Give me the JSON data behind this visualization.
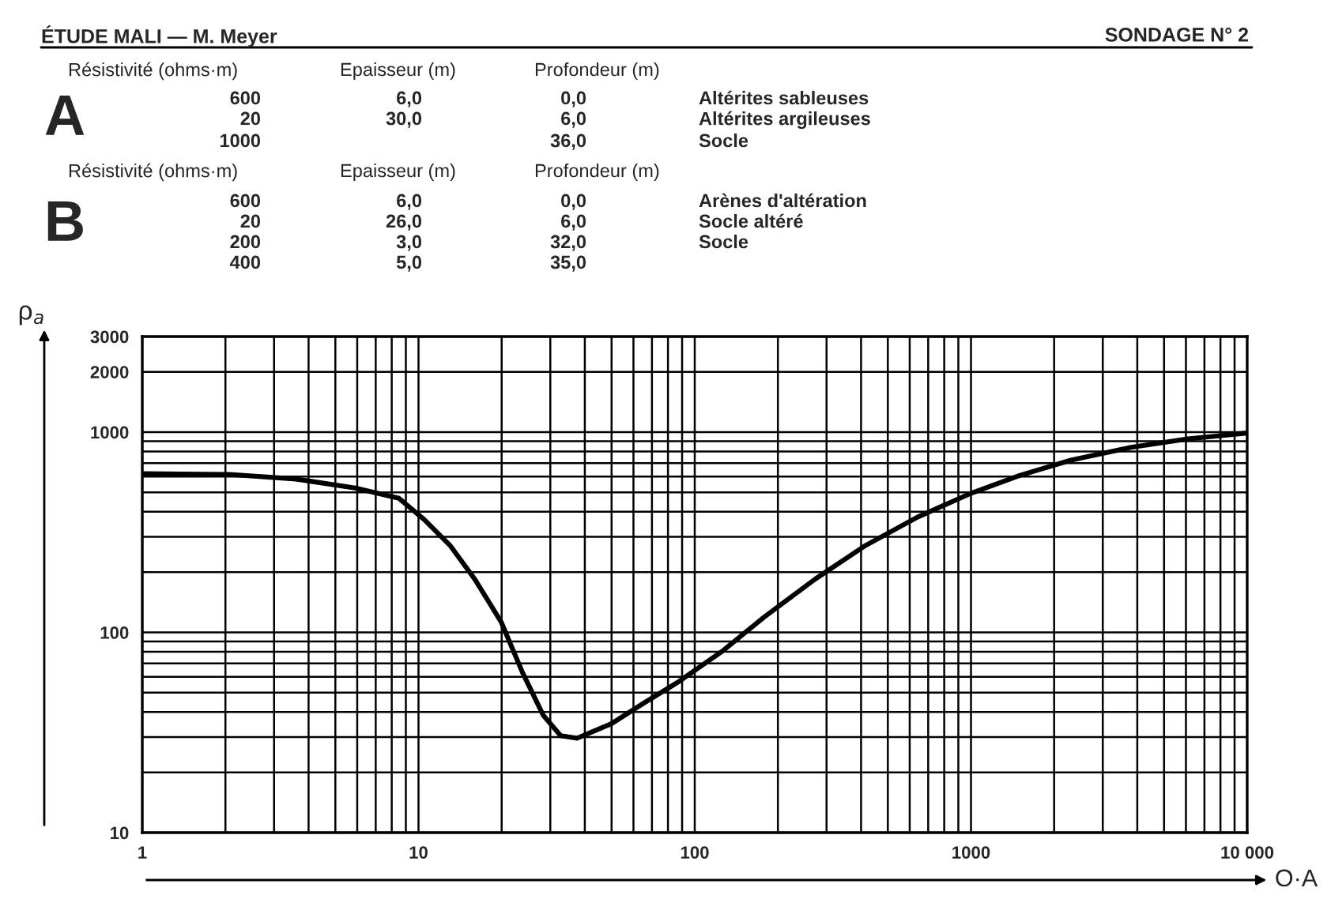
{
  "chart_data": {
    "type": "line",
    "title": "ÉTUDE MALI — M. Meyer",
    "subtitle": "SONDAGE N° 2",
    "annotations": [
      "Résistivité (ohms·m)\tEpaisseur (m)\tProfondeur (m)",
      "A",
      "600\t6,0\t0,0\tAltérites sableuses",
      "20\t30,0\t6,0\tAltérites argileuses",
      "1000\t\t36,0\tSocle",
      "Résistivité (ohms·m)\tEpaisseur (m)\tProfondeur (m)",
      "B",
      "600\t6,0\t0,0\tArènes d'altération",
      "20\t26,0\t6,0\tSocle altéré",
      "200\t3,0\t32,0\tSocle",
      "400\t5,0\t35,0"
    ],
    "ylabel": "ρ$_{a}$",
    "xlabel": "O·A",
    "log": "xy",
    "grid": true,
    "line_style": "solid",
    "xlim": [
      1,
      10000
    ],
    "xticks": [
      1,
      10,
      100,
      1000,
      {
        "value": 10000,
        "label": "10 000"
      }
    ],
    "ylim": [
      10,
      3000
    ],
    "yticks": [
      10,
      100,
      1000,
      2000,
      3000
    ],
    "series": [
      {
        "color": "#000000",
        "x": [
          1,
          2.06,
          3.6,
          5.9,
          8.5,
          10.5,
          13,
          16,
          19.9,
          23.8,
          28.3,
          32.7,
          37.5,
          49.9,
          66,
          88,
          125,
          178,
          272,
          416,
          640,
          980,
          1500,
          2300,
          3800,
          6100,
          10000
        ],
        "values": [
          620,
          615,
          583,
          526,
          467,
          365,
          272,
          184,
          113,
          63,
          38.5,
          30.5,
          29.6,
          35,
          44.7,
          57,
          80,
          119,
          184,
          272,
          376,
          489,
          607,
          724,
          839,
          925,
          990
        ]
      }
    ]
  }
}
